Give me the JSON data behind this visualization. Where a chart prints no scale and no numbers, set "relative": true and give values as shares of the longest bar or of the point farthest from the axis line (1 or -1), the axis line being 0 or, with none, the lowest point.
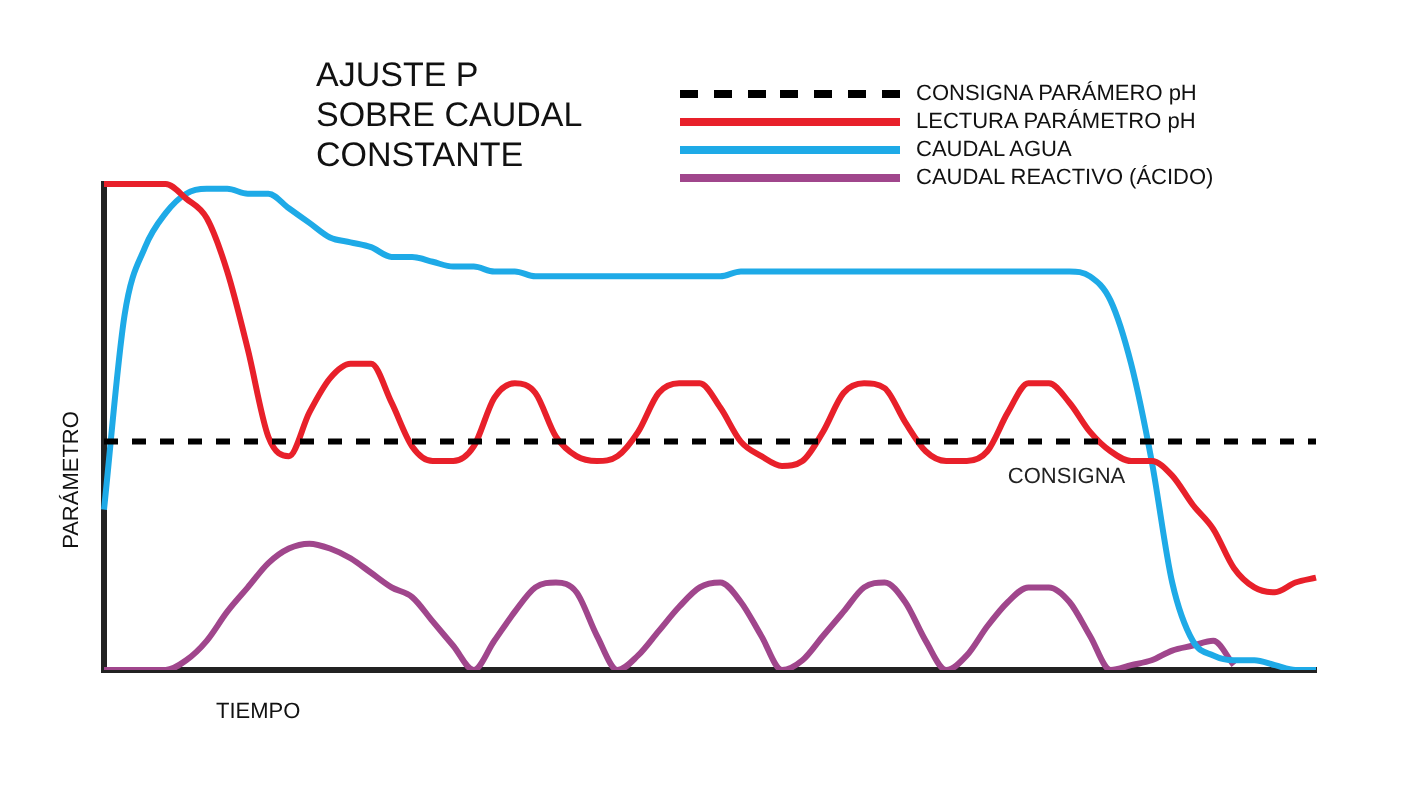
{
  "chart_data": {
    "type": "line",
    "relative": true,
    "title": "AJUSTE P\nSOBRE CAUDAL\nCONSTANTE",
    "xlabel": "TIEMPO",
    "ylabel": "PARÁMETRO",
    "legend": "top right",
    "marker": "none",
    "grid": false,
    "tick_labels": false,
    "categories": [
      null,
      null,
      null,
      null,
      null,
      null,
      null,
      null,
      null,
      null,
      null,
      null,
      null,
      null,
      null,
      null,
      null,
      null,
      null,
      null,
      null,
      null,
      null,
      null,
      null,
      null,
      null,
      null,
      null,
      null,
      null,
      null,
      null,
      null,
      null,
      null,
      null,
      null,
      null,
      null,
      null,
      null,
      null,
      null,
      null,
      null,
      null,
      null,
      null,
      null,
      null,
      null,
      null,
      null,
      null,
      null,
      null,
      null,
      null,
      null
    ],
    "series": [
      {
        "name": "CONSIGNA PARÁMERO pH",
        "color": "#000000",
        "line_style": "dashed",
        "values": [
          0.47,
          0.47,
          0.47,
          0.47,
          0.47,
          0.47,
          0.47,
          0.47,
          0.47,
          0.47,
          0.47,
          0.47,
          0.47,
          0.47,
          0.47,
          0.47,
          0.47,
          0.47,
          0.47,
          0.47,
          0.47,
          0.47,
          0.47,
          0.47,
          0.47,
          0.47,
          0.47,
          0.47,
          0.47,
          0.47,
          0.47,
          0.47,
          0.47,
          0.47,
          0.47,
          0.47,
          0.47,
          0.47,
          0.47,
          0.47,
          0.47,
          0.47,
          0.47,
          0.47,
          0.47,
          0.47,
          0.47,
          0.47,
          0.47,
          0.47,
          0.47,
          0.47,
          0.47,
          0.47,
          0.47,
          0.47,
          0.47,
          0.47,
          0.47,
          0.47
        ]
      },
      {
        "name": "LECTURA PARÁMETRO pH",
        "color": "#e8202a",
        "line_style": "solid",
        "values": [
          1.0,
          1.0,
          1.0,
          1.0,
          0.97,
          0.93,
          0.82,
          0.66,
          0.48,
          0.44,
          0.53,
          0.6,
          0.63,
          0.63,
          0.55,
          0.46,
          0.43,
          0.43,
          0.46,
          0.56,
          0.59,
          0.57,
          0.48,
          0.44,
          0.43,
          0.44,
          0.49,
          0.57,
          0.59,
          0.59,
          0.54,
          0.47,
          0.44,
          0.42,
          0.43,
          0.49,
          0.57,
          0.59,
          0.58,
          0.51,
          0.45,
          0.43,
          0.43,
          0.45,
          0.53,
          0.59,
          0.59,
          0.55,
          0.49,
          0.45,
          0.43,
          0.43,
          0.4,
          0.34,
          0.29,
          0.21,
          0.17,
          0.16,
          0.18,
          0.19
        ]
      },
      {
        "name": "CAUDAL AGUA",
        "color": "#1eaae7",
        "line_style": "solid",
        "values": [
          0.33,
          0.73,
          0.87,
          0.94,
          0.98,
          0.99,
          0.99,
          0.98,
          0.98,
          0.95,
          0.92,
          0.89,
          0.88,
          0.87,
          0.85,
          0.85,
          0.84,
          0.83,
          0.83,
          0.82,
          0.82,
          0.81,
          0.81,
          0.81,
          0.81,
          0.81,
          0.81,
          0.81,
          0.81,
          0.81,
          0.81,
          0.82,
          0.82,
          0.82,
          0.82,
          0.82,
          0.82,
          0.82,
          0.82,
          0.82,
          0.82,
          0.82,
          0.82,
          0.82,
          0.82,
          0.82,
          0.82,
          0.82,
          0.81,
          0.76,
          0.63,
          0.43,
          0.18,
          0.06,
          0.03,
          0.02,
          0.02,
          0.01,
          0.0,
          0.0
        ]
      },
      {
        "name": "CAUDAL REACTIVO (ÁCIDO)",
        "color": "#a0468c",
        "line_style": "solid",
        "values": [
          0.0,
          0.0,
          0.0,
          0.0,
          0.02,
          0.06,
          0.12,
          0.17,
          0.22,
          0.25,
          0.26,
          0.25,
          0.23,
          0.2,
          0.17,
          0.15,
          0.1,
          0.05,
          0.0,
          0.06,
          0.12,
          0.17,
          0.18,
          0.16,
          0.07,
          0.0,
          0.03,
          0.08,
          0.13,
          0.17,
          0.18,
          0.14,
          0.07,
          0.0,
          0.02,
          0.07,
          0.12,
          0.17,
          0.18,
          0.14,
          0.06,
          0.0,
          0.03,
          0.09,
          0.14,
          0.17,
          0.17,
          0.14,
          0.07,
          0.0,
          0.01,
          0.02,
          0.04,
          0.05,
          0.06,
          0.01,
          null,
          null,
          null,
          null
        ]
      }
    ],
    "annotations": [
      "CONSIGNA"
    ]
  }
}
